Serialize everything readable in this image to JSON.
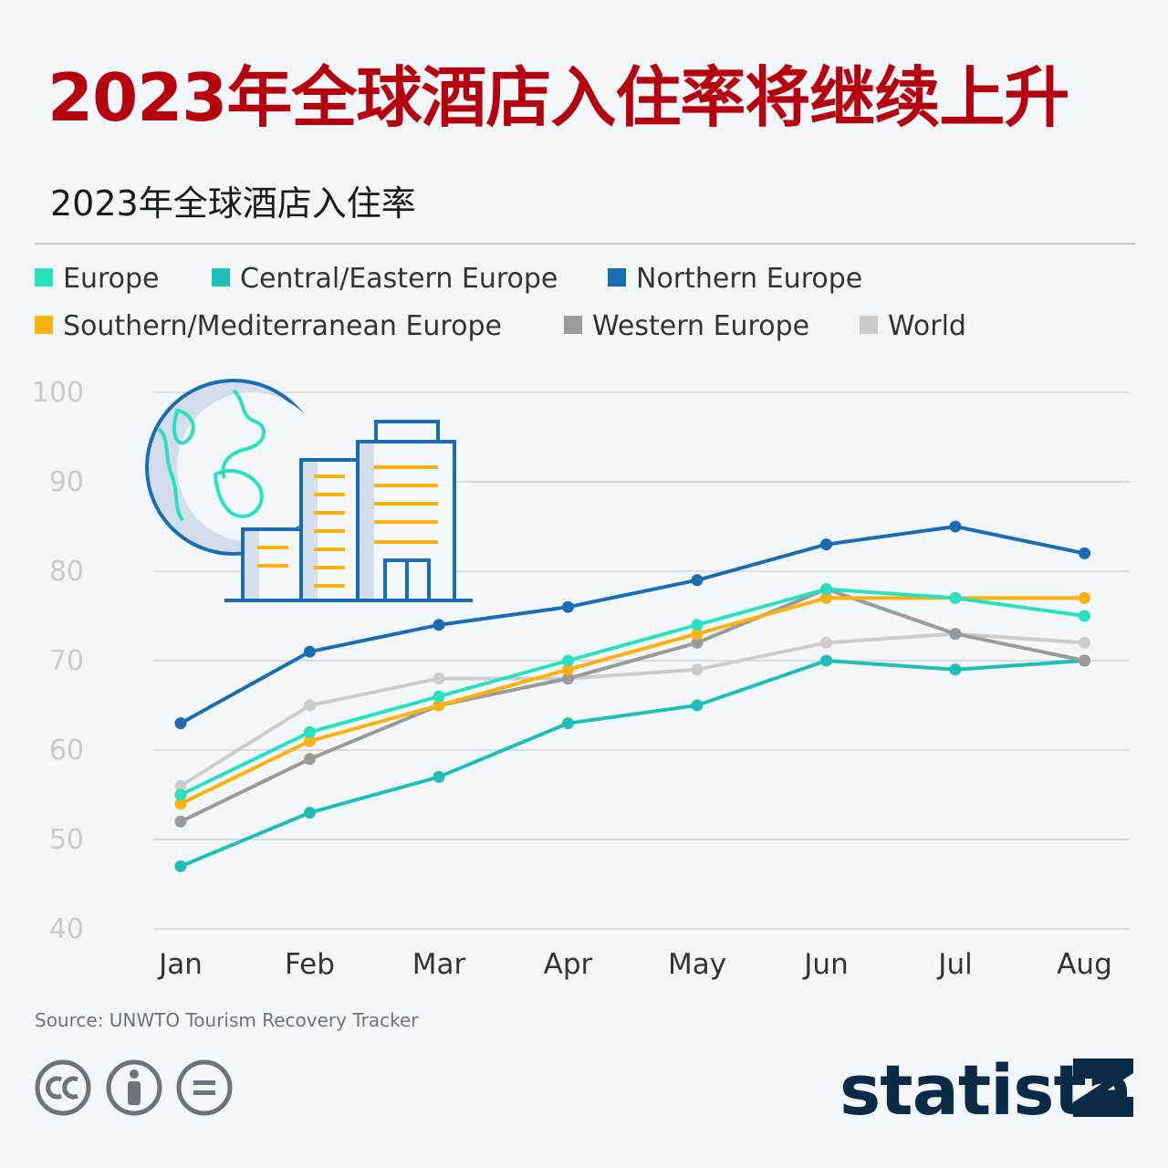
{
  "header": {
    "title": "2023年全球酒店入住率将继续上升",
    "subtitle": "2023年全球酒店入住率"
  },
  "footer": {
    "source": "Source: UNWTO Tourism Recovery Tracker",
    "brand": "statista",
    "license_icons": [
      "cc-icon",
      "attribution-icon",
      "no-derivatives-icon"
    ]
  },
  "chart_data": {
    "type": "line",
    "x": [
      "Jan",
      "Feb",
      "Mar",
      "Apr",
      "May",
      "Jun",
      "Jul",
      "Aug"
    ],
    "ylim": [
      40,
      100
    ],
    "yticks": [
      40,
      50,
      60,
      70,
      80,
      90,
      100
    ],
    "grid": true,
    "legend_position": "top",
    "series": [
      {
        "name": "Europe",
        "color": "#29e0c0",
        "values": [
          55,
          62,
          66,
          70,
          74,
          78,
          77,
          75
        ]
      },
      {
        "name": "Central/Eastern Europe",
        "color": "#1fbfb8",
        "values": [
          47,
          53,
          57,
          63,
          65,
          70,
          69,
          70
        ]
      },
      {
        "name": "Northern Europe",
        "color": "#1a6db4",
        "values": [
          63,
          71,
          74,
          76,
          79,
          83,
          85,
          82
        ]
      },
      {
        "name": "Southern/Mediterranean Europe",
        "color": "#fcb10c",
        "values": [
          54,
          61,
          65,
          69,
          73,
          77,
          77,
          77
        ]
      },
      {
        "name": "Western Europe",
        "color": "#9a9a9a",
        "values": [
          52,
          59,
          65,
          68,
          72,
          78,
          73,
          70
        ]
      },
      {
        "name": "World",
        "color": "#cccccc",
        "values": [
          56,
          65,
          68,
          68,
          69,
          72,
          73,
          72
        ]
      }
    ]
  }
}
